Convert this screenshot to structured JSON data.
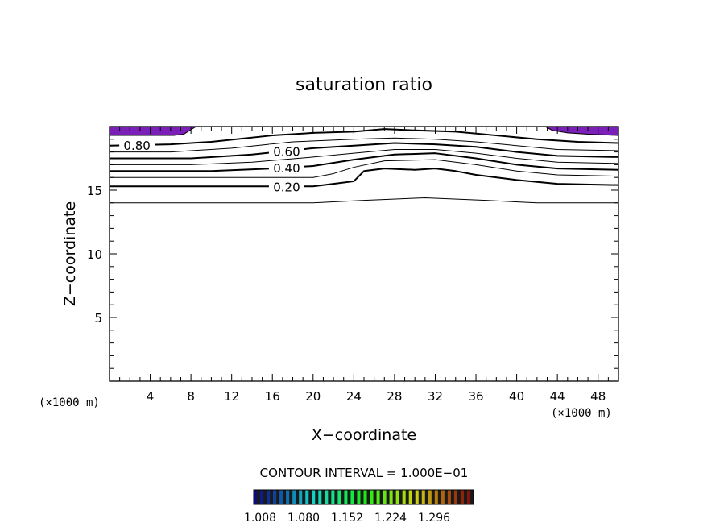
{
  "chart_data": {
    "type": "contour",
    "title": "saturation ratio",
    "xlabel": "X−coordinate",
    "ylabel": "Z−coordinate",
    "x_unit": "(×1000 m)",
    "y_unit": "(×1000 m)",
    "xlim": [
      0,
      50
    ],
    "ylim": [
      0,
      20
    ],
    "x_ticks": [
      4,
      8,
      12,
      16,
      20,
      24,
      28,
      32,
      36,
      40,
      44,
      48
    ],
    "y_ticks": [
      5,
      10,
      15
    ],
    "contour_interval_text": "CONTOUR INTERVAL = 1.000E−01",
    "colorbar_labels": [
      "1.008",
      "1.080",
      "1.152",
      "1.224",
      "1.296"
    ],
    "fill_color": "#7a1fb8",
    "contours": [
      {
        "level": 0.1,
        "heavy": false,
        "points": [
          [
            0,
            14.0
          ],
          [
            10,
            14.0
          ],
          [
            20,
            14.0
          ],
          [
            25,
            14.2
          ],
          [
            31,
            14.4
          ],
          [
            37,
            14.2
          ],
          [
            42,
            14.0
          ],
          [
            50,
            14.0
          ]
        ]
      },
      {
        "level": 0.2,
        "heavy": true,
        "label": "0.20",
        "label_x": 17.4,
        "points": [
          [
            0,
            15.3
          ],
          [
            8,
            15.3
          ],
          [
            14,
            15.3
          ],
          [
            20,
            15.3
          ],
          [
            22,
            15.5
          ],
          [
            24,
            15.7
          ],
          [
            25,
            16.5
          ],
          [
            27,
            16.7
          ],
          [
            30,
            16.6
          ],
          [
            32,
            16.7
          ],
          [
            34,
            16.5
          ],
          [
            36,
            16.2
          ],
          [
            40,
            15.8
          ],
          [
            44,
            15.5
          ],
          [
            50,
            15.4
          ]
        ]
      },
      {
        "level": 0.3,
        "heavy": false,
        "points": [
          [
            0,
            16.0
          ],
          [
            10,
            16.0
          ],
          [
            16,
            16.0
          ],
          [
            20,
            16.0
          ],
          [
            22,
            16.3
          ],
          [
            24,
            16.8
          ],
          [
            27,
            17.3
          ],
          [
            32,
            17.4
          ],
          [
            36,
            17.0
          ],
          [
            40,
            16.5
          ],
          [
            44,
            16.2
          ],
          [
            50,
            16.1
          ]
        ]
      },
      {
        "level": 0.4,
        "heavy": true,
        "label": "0.40",
        "label_x": 17.4,
        "points": [
          [
            0,
            16.5
          ],
          [
            10,
            16.5
          ],
          [
            16,
            16.7
          ],
          [
            20,
            16.9
          ],
          [
            24,
            17.4
          ],
          [
            28,
            17.8
          ],
          [
            32,
            17.9
          ],
          [
            36,
            17.5
          ],
          [
            40,
            17.0
          ],
          [
            44,
            16.7
          ],
          [
            50,
            16.6
          ]
        ]
      },
      {
        "level": 0.5,
        "heavy": false,
        "points": [
          [
            0,
            17.0
          ],
          [
            8,
            17.0
          ],
          [
            14,
            17.2
          ],
          [
            20,
            17.6
          ],
          [
            24,
            17.9
          ],
          [
            28,
            18.2
          ],
          [
            32,
            18.2
          ],
          [
            36,
            17.9
          ],
          [
            40,
            17.5
          ],
          [
            44,
            17.2
          ],
          [
            50,
            17.1
          ]
        ]
      },
      {
        "level": 0.6,
        "heavy": true,
        "label": "0.60",
        "label_x": 17.4,
        "points": [
          [
            0,
            17.5
          ],
          [
            8,
            17.5
          ],
          [
            14,
            17.8
          ],
          [
            20,
            18.3
          ],
          [
            24,
            18.5
          ],
          [
            28,
            18.7
          ],
          [
            32,
            18.6
          ],
          [
            36,
            18.4
          ],
          [
            40,
            18.0
          ],
          [
            44,
            17.7
          ],
          [
            50,
            17.6
          ]
        ]
      },
      {
        "level": 0.7,
        "heavy": false,
        "points": [
          [
            0,
            18.0
          ],
          [
            6,
            18.0
          ],
          [
            12,
            18.3
          ],
          [
            18,
            18.8
          ],
          [
            24,
            19.0
          ],
          [
            28,
            19.1
          ],
          [
            32,
            19.0
          ],
          [
            36,
            18.8
          ],
          [
            40,
            18.5
          ],
          [
            44,
            18.2
          ],
          [
            50,
            18.1
          ]
        ]
      },
      {
        "level": 0.8,
        "heavy": true,
        "label": "0.80",
        "label_x": 2.7,
        "points": [
          [
            0,
            18.5
          ],
          [
            6,
            18.6
          ],
          [
            10,
            18.8
          ],
          [
            16,
            19.3
          ],
          [
            20,
            19.5
          ],
          [
            24,
            19.6
          ],
          [
            27,
            19.8
          ],
          [
            30,
            19.7
          ],
          [
            34,
            19.6
          ],
          [
            38,
            19.3
          ],
          [
            42,
            19.0
          ],
          [
            46,
            18.8
          ],
          [
            50,
            18.7
          ]
        ]
      }
    ],
    "filled_regions": [
      {
        "points": [
          [
            0,
            20
          ],
          [
            8.5,
            20
          ],
          [
            7.9,
            19.7
          ],
          [
            7.3,
            19.4
          ],
          [
            6.3,
            19.3
          ],
          [
            0,
            19.3
          ]
        ]
      },
      {
        "points": [
          [
            50,
            20
          ],
          [
            42.8,
            20
          ],
          [
            43.5,
            19.7
          ],
          [
            45,
            19.5
          ],
          [
            47,
            19.4
          ],
          [
            50,
            19.3
          ]
        ]
      }
    ]
  }
}
